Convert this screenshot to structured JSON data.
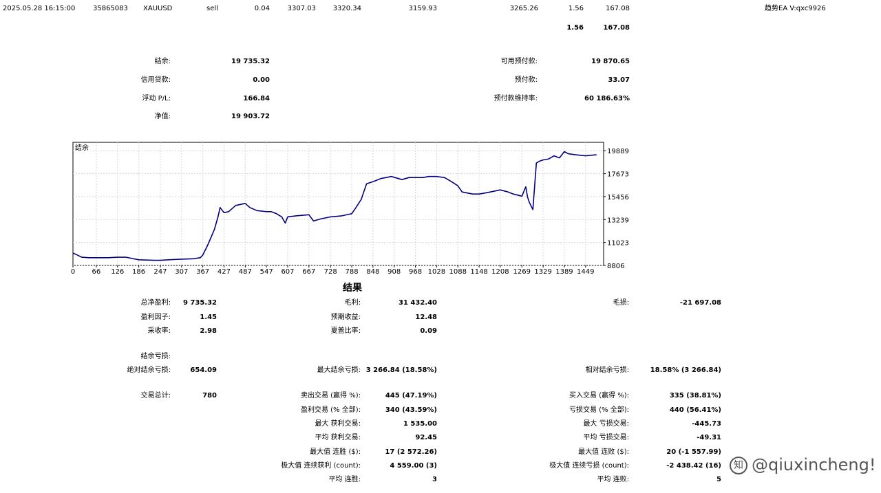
{
  "trade_row": {
    "time": "2025.05.28 16:15:00",
    "order": "35865083",
    "symbol": "XAUUSD",
    "type": "sell",
    "volume": "0.04",
    "price": "3307.03",
    "sl": "3320.34",
    "tp": "3159.93",
    "close_price": "3265.26",
    "swap": "1.56",
    "profit": "167.08",
    "comment": "趋势EA V:qxc9926"
  },
  "totals_row": {
    "swap": "1.56",
    "profit": "167.08"
  },
  "account_left": [
    {
      "label": "结余:",
      "value": "19 735.32"
    },
    {
      "label": "信用贷款:",
      "value": "0.00"
    },
    {
      "label": "浮动 P/L:",
      "value": "166.84"
    },
    {
      "label": "净值:",
      "value": "19 903.72"
    }
  ],
  "account_right": [
    {
      "label": "可用预付款:",
      "value": "19 870.65"
    },
    {
      "label": "预付款:",
      "value": "33.07"
    },
    {
      "label": "预付款维持率:",
      "value": "60 186.63%"
    }
  ],
  "chart_data": {
    "type": "line",
    "title": "结余",
    "series": [
      {
        "name": "",
        "color": "#000080",
        "x": [
          0,
          10,
          25,
          45,
          66,
          100,
          126,
          150,
          186,
          230,
          247,
          270,
          300,
          340,
          360,
          367,
          380,
          390,
          400,
          410,
          416,
          427,
          440,
          460,
          487,
          500,
          520,
          547,
          560,
          575,
          590,
          600,
          607,
          630,
          667,
          680,
          700,
          728,
          760,
          788,
          800,
          815,
          830,
          848,
          870,
          900,
          930,
          950,
          968,
          990,
          1005,
          1028,
          1050,
          1070,
          1088,
          1100,
          1130,
          1148,
          1165,
          1180,
          1208,
          1230,
          1245,
          1269,
          1280,
          1285,
          1290,
          1300,
          1310,
          1320,
          1329,
          1345,
          1360,
          1375,
          1389,
          1400,
          1420,
          1449,
          1480
        ],
        "y": [
          10000,
          9850,
          9600,
          9550,
          9550,
          9550,
          9600,
          9600,
          9350,
          9300,
          9300,
          9350,
          9400,
          9450,
          9550,
          9800,
          10700,
          11500,
          12300,
          13500,
          14400,
          13900,
          14000,
          14600,
          14800,
          14400,
          14100,
          14000,
          14000,
          13800,
          13500,
          12900,
          13500,
          13600,
          13700,
          13100,
          13300,
          13500,
          13600,
          13800,
          14400,
          15200,
          16700,
          16900,
          17200,
          17400,
          17100,
          17300,
          17300,
          17300,
          17400,
          17400,
          17300,
          16900,
          16500,
          15900,
          15700,
          15700,
          15800,
          15900,
          16100,
          15900,
          15700,
          15500,
          16400,
          15400,
          14900,
          14200,
          18700,
          18900,
          19000,
          19100,
          19400,
          19200,
          19800,
          19600,
          19500,
          19400,
          19500
        ]
      }
    ],
    "yticks": [
      "19889",
      "17673",
      "15456",
      "13239",
      "11023",
      "8806"
    ],
    "xticks": [
      "0",
      "66",
      "126",
      "186",
      "247",
      "307",
      "367",
      "427",
      "487",
      "547",
      "607",
      "667",
      "728",
      "788",
      "848",
      "908",
      "968",
      "1028",
      "1088",
      "1148",
      "1208",
      "1269",
      "1329",
      "1389",
      "1449"
    ],
    "xlim": [
      0,
      1500
    ],
    "ylim": [
      8806,
      20700
    ],
    "grid": true
  },
  "results_title": "结果",
  "results": {
    "col1": [
      {
        "label": "总净盈利:",
        "value": "9 735.32"
      },
      {
        "label": "盈利因子:",
        "value": "1.45"
      },
      {
        "label": "采收率:",
        "value": "2.98"
      },
      {
        "label": "结余亏损:",
        "value": ""
      },
      {
        "label": "绝对结余亏损:",
        "value": "654.09"
      },
      {
        "label": "交易总计:",
        "value": "780"
      }
    ],
    "col2": [
      {
        "label": "毛利:",
        "value": "31 432.40"
      },
      {
        "label": "预期收益:",
        "value": "12.48"
      },
      {
        "label": "夏普比率:",
        "value": "0.09"
      },
      {
        "label": "最大结余亏损:",
        "value": "3 266.84 (18.58%)"
      },
      {
        "label": "卖出交易 (赢得 %):",
        "value": "445 (47.19%)"
      },
      {
        "label": "盈利交易 (% 全部):",
        "value": "340 (43.59%)"
      },
      {
        "label": "最大 获利交易:",
        "value": "1 535.00"
      },
      {
        "label": "平均 获利交易:",
        "value": "92.45"
      },
      {
        "label": "最大值 连胜 ($):",
        "value": "17 (2 572.26)"
      },
      {
        "label": "极大值 连续获利 (count):",
        "value": "4 559.00 (3)"
      },
      {
        "label": "平均 连胜:",
        "value": "3"
      }
    ],
    "col3": [
      {
        "label": "毛损:",
        "value": "-21 697.08"
      },
      {
        "label": "相对结余亏损:",
        "value": "18.58% (3 266.84)"
      },
      {
        "label": "买入交易 (赢得 %):",
        "value": "335 (38.81%)"
      },
      {
        "label": "亏损交易 (% 全部):",
        "value": "440 (56.41%)"
      },
      {
        "label": "最大 亏损交易:",
        "value": "-445.73"
      },
      {
        "label": "平均 亏损交易:",
        "value": "-49.31"
      },
      {
        "label": "最大值 连败 ($):",
        "value": "20 (-1 557.99)"
      },
      {
        "label": "极大值 连续亏损 (count):",
        "value": "-2 438.42 (16)"
      },
      {
        "label": "平均 连败:",
        "value": "5"
      }
    ]
  },
  "watermark": {
    "icon": "zhihu-icon",
    "text": "@qiuxincheng!"
  }
}
